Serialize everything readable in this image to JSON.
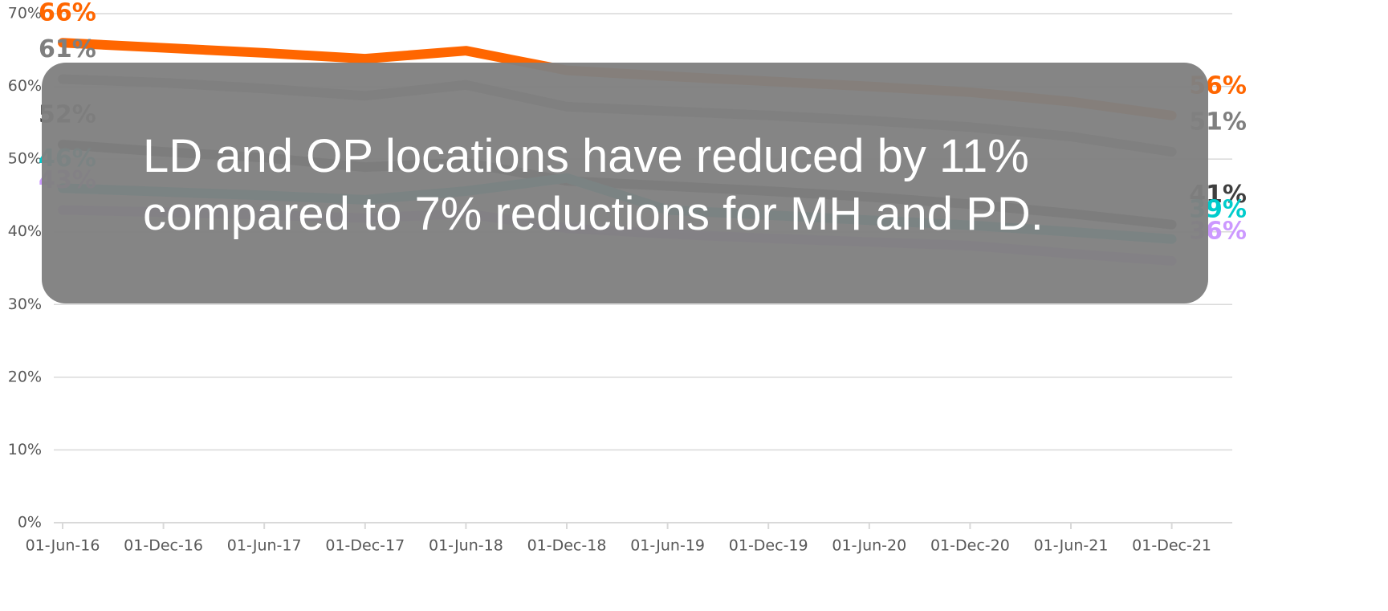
{
  "chart_data": {
    "type": "line",
    "categories": [
      "01-Jun-16",
      "01-Dec-16",
      "01-Jun-17",
      "01-Dec-17",
      "01-Jun-18",
      "01-Dec-18",
      "01-Jun-19",
      "01-Dec-19",
      "01-Jun-20",
      "01-Dec-20",
      "01-Jun-21",
      "01-Dec-21"
    ],
    "ylim": [
      0,
      70
    ],
    "yticks": [
      {
        "value": 0,
        "label": "0%"
      },
      {
        "value": 10,
        "label": "10%"
      },
      {
        "value": 20,
        "label": "20%"
      },
      {
        "value": 30,
        "label": "30%"
      },
      {
        "value": 40,
        "label": "40%"
      },
      {
        "value": 50,
        "label": "50%"
      },
      {
        "value": 60,
        "label": "60%"
      },
      {
        "value": 70,
        "label": "70%"
      }
    ],
    "grid": true,
    "series": [
      {
        "color": "#ff6600",
        "values": [
          66,
          65.3,
          64.6,
          63.8,
          64.9,
          62.2,
          61.4,
          60.7,
          60,
          59.2,
          57.9,
          56
        ],
        "value_labels": [
          "66%",
          null,
          null,
          null,
          null,
          null,
          null,
          null,
          null,
          null,
          null,
          "56%"
        ]
      },
      {
        "color": "#7f7f7f",
        "values": [
          61,
          60.5,
          59.7,
          58.7,
          60.2,
          57.2,
          56.6,
          56,
          55.3,
          54.4,
          53.1,
          51
        ],
        "value_labels": [
          "61%",
          null,
          null,
          null,
          null,
          null,
          null,
          null,
          null,
          null,
          null,
          "51%"
        ]
      },
      {
        "color": "#3f3f3f",
        "values": [
          52,
          51,
          50.2,
          48.9,
          49.5,
          47,
          46.3,
          45.6,
          44.8,
          43.8,
          42.5,
          41
        ],
        "value_labels": [
          "52%",
          null,
          null,
          null,
          null,
          null,
          null,
          null,
          null,
          null,
          null,
          "41%"
        ]
      },
      {
        "color": "#00cccc",
        "values": [
          46,
          45.5,
          45,
          44.4,
          45.6,
          47.4,
          43,
          42.3,
          41.6,
          40.9,
          40,
          39
        ],
        "value_labels": [
          "46%",
          null,
          null,
          null,
          null,
          null,
          null,
          null,
          null,
          null,
          null,
          "39%"
        ]
      },
      {
        "color": "#cc99ff",
        "values": [
          43,
          42.7,
          42.3,
          41.9,
          42.5,
          40.5,
          39.7,
          39.1,
          38.6,
          38.1,
          37,
          36
        ],
        "value_labels": [
          "43%",
          null,
          null,
          null,
          null,
          null,
          null,
          null,
          null,
          null,
          null,
          "36%"
        ]
      }
    ],
    "annotation": [
      "LD and OP locations have reduced by 11%",
      "compared to 7% reductions for MH and PD."
    ]
  }
}
